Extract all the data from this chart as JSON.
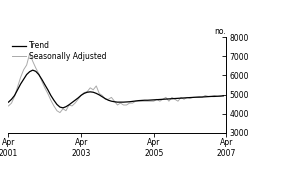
{
  "title": "",
  "ylabel_right": "no.",
  "ylim": [
    3000,
    8000
  ],
  "yticks": [
    3000,
    4000,
    5000,
    6000,
    7000,
    8000
  ],
  "xlim": [
    0,
    72
  ],
  "xtick_positions": [
    0,
    24,
    48,
    72
  ],
  "xtick_labels": [
    "Apr\n2001",
    "Apr\n2003",
    "Apr\n2005",
    "Apr\n2007"
  ],
  "legend_entries": [
    "Trend",
    "Seasonally Adjusted"
  ],
  "trend_color": "#000000",
  "sa_color": "#aaaaaa",
  "background_color": "#ffffff",
  "trend": [
    4600,
    4750,
    4950,
    5250,
    5550,
    5800,
    6050,
    6200,
    6280,
    6220,
    6050,
    5800,
    5520,
    5250,
    4950,
    4700,
    4480,
    4340,
    4300,
    4360,
    4460,
    4580,
    4700,
    4820,
    4960,
    5060,
    5120,
    5140,
    5120,
    5060,
    4980,
    4880,
    4780,
    4700,
    4650,
    4620,
    4600,
    4600,
    4600,
    4610,
    4620,
    4640,
    4660,
    4680,
    4690,
    4700,
    4700,
    4710,
    4720,
    4730,
    4740,
    4750,
    4760,
    4770,
    4780,
    4790,
    4800,
    4810,
    4820,
    4830,
    4840,
    4850,
    4860,
    4860,
    4870,
    4880,
    4890,
    4900,
    4900,
    4910,
    4920,
    4930
  ],
  "sa": [
    4400,
    4550,
    4900,
    5400,
    5900,
    6300,
    6550,
    7150,
    6750,
    6400,
    6100,
    5700,
    5350,
    5050,
    4700,
    4400,
    4150,
    4050,
    4250,
    4150,
    4450,
    4400,
    4550,
    4750,
    4950,
    5100,
    5150,
    5350,
    5250,
    5450,
    5050,
    4950,
    4750,
    4750,
    4850,
    4650,
    4450,
    4550,
    4450,
    4450,
    4550,
    4550,
    4650,
    4650,
    4650,
    4650,
    4650,
    4650,
    4650,
    4750,
    4650,
    4750,
    4850,
    4650,
    4850,
    4750,
    4650,
    4850,
    4750,
    4850,
    4800,
    4850,
    4850,
    4900,
    4850,
    4950,
    4900,
    4900,
    4950,
    4900,
    4900,
    4950
  ]
}
